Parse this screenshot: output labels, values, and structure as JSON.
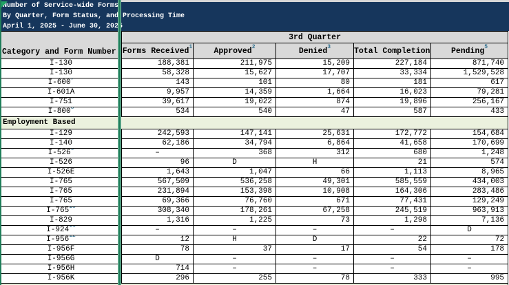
{
  "title": {
    "line1": "Number of Service-wide Forms",
    "line2": "By Quarter, Form Status, and Processing Time",
    "line3": "April 1, 2025 - June 30, 2025"
  },
  "table": {
    "corner_header": "Category and Form Number",
    "quarter_header": "3rd Quarter",
    "columns": [
      {
        "label": "Forms Received",
        "footnote": "1"
      },
      {
        "label": "Approved",
        "footnote": "2"
      },
      {
        "label": "Denied",
        "footnote": "3"
      },
      {
        "label": "Total Completions",
        "footnote": "4"
      },
      {
        "label": "Pending",
        "footnote": "5"
      }
    ],
    "sections": [
      {
        "header": null,
        "rows": [
          {
            "form": "I-130",
            "footnote": "",
            "values": [
              "188,381",
              "211,975",
              "15,209",
              "227,184",
              "871,740"
            ]
          },
          {
            "form": "I-130",
            "footnote": "",
            "values": [
              "58,328",
              "15,627",
              "17,707",
              "33,334",
              "1,529,528"
            ]
          },
          {
            "form": "I-600",
            "footnote": "7",
            "values": [
              "143",
              "101",
              "80",
              "181",
              "617"
            ]
          },
          {
            "form": "I-601A",
            "footnote": "",
            "values": [
              "9,957",
              "14,359",
              "1,664",
              "16,023",
              "79,281"
            ]
          },
          {
            "form": "I-751",
            "footnote": "",
            "values": [
              "39,617",
              "19,022",
              "874",
              "19,896",
              "256,167"
            ]
          },
          {
            "form": "I-800",
            "footnote": "8",
            "values": [
              "534",
              "540",
              "47",
              "587",
              "433"
            ]
          }
        ]
      },
      {
        "header": "Employment Based",
        "rows": [
          {
            "form": "I-129",
            "footnote": "",
            "values": [
              "242,593",
              "147,141",
              "25,631",
              "172,772",
              "154,684"
            ]
          },
          {
            "form": "I-140",
            "footnote": "",
            "values": [
              "62,186",
              "34,794",
              "6,864",
              "41,658",
              "170,699"
            ]
          },
          {
            "form": "I-526",
            "footnote": "9",
            "values": [
              "–",
              "368",
              "312",
              "680",
              "1,248"
            ]
          },
          {
            "form": "I-526",
            "footnote": "",
            "values": [
              "96",
              "D",
              "H",
              "21",
              "574"
            ]
          },
          {
            "form": "I-526E",
            "footnote": "",
            "values": [
              "1,643",
              "1,047",
              "66",
              "1,113",
              "8,965"
            ]
          },
          {
            "form": "I-765",
            "footnote": "",
            "values": [
              "567,509",
              "536,258",
              "49,301",
              "585,559",
              "434,003"
            ]
          },
          {
            "form": "I-765",
            "footnote": "",
            "values": [
              "231,894",
              "153,398",
              "10,908",
              "164,306",
              "283,486"
            ]
          },
          {
            "form": "I-765",
            "footnote": "",
            "values": [
              "69,366",
              "76,760",
              "671",
              "77,431",
              "129,249"
            ]
          },
          {
            "form": "I-765",
            "footnote": "10",
            "values": [
              "308,340",
              "178,261",
              "67,258",
              "245,519",
              "963,913"
            ]
          },
          {
            "form": "I-829",
            "footnote": "",
            "values": [
              "1,316",
              "1,225",
              "73",
              "1,298",
              "7,136"
            ]
          },
          {
            "form": "I-924",
            "footnote": "11",
            "values": [
              "–",
              "–",
              "–",
              "–",
              "D"
            ]
          },
          {
            "form": "I-956",
            "footnote": "12",
            "values": [
              "12",
              "H",
              "D",
              "22",
              "72"
            ]
          },
          {
            "form": "I-956F",
            "footnote": "",
            "values": [
              "78",
              "37",
              "17",
              "54",
              "178"
            ]
          },
          {
            "form": "I-956G",
            "footnote": "",
            "values": [
              "D",
              "–",
              "–",
              "–",
              "–"
            ]
          },
          {
            "form": "I-956H",
            "footnote": "",
            "values": [
              "714",
              "–",
              "–",
              "–",
              "–"
            ]
          },
          {
            "form": "I-956K",
            "footnote": "",
            "values": [
              "296",
              "255",
              "78",
              "333",
              "995"
            ]
          }
        ]
      },
      {
        "header": "",
        "partial": true,
        "rows": []
      }
    ]
  },
  "colors": {
    "title_bar_bg": "#16365C",
    "title_text": "#FFFFFF",
    "header_bg": "#D9D9D9",
    "section_row_bg": "#EBF1DE",
    "freeze_divider": "#1F7E5A",
    "triangle_green": "#21A464",
    "footnote_marker": "#31708F",
    "grid_border": "#000000"
  }
}
